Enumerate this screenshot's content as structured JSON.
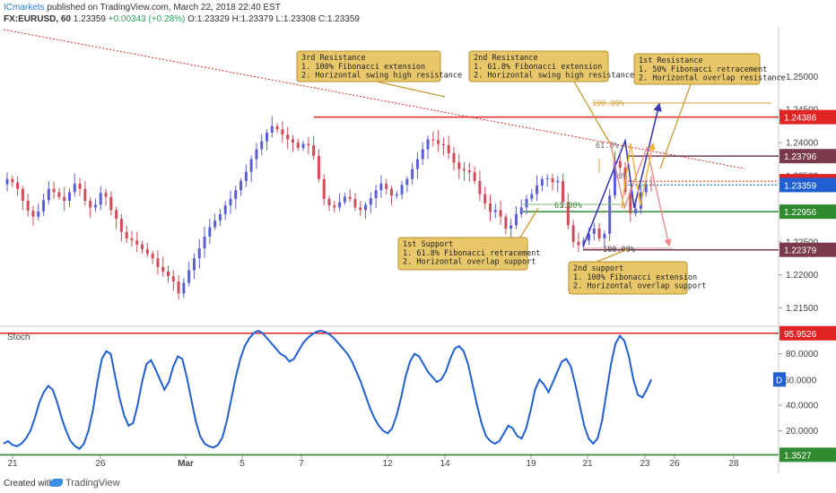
{
  "header": {
    "author": "ICmarkets",
    "published": "published on TradingView.com, March 22, 2018 22:40 EST",
    "symbol": "FX:EURUSD, 60",
    "last": "1.23359",
    "change": "+0.00343 (+0.28%)",
    "ohlc": "O:1.23329  H:1.23379  L:1.23308  C:1.23359"
  },
  "footer": {
    "created": "Created with",
    "brand": "TradingView"
  },
  "colors": {
    "candle_up": "#5a5fd6",
    "candle_down": "#d04c58",
    "resistance": "#e02424",
    "support": "#2f8a2f",
    "stoch": "#1f5fd1",
    "note_bg": "#e5c15a",
    "note_border": "#b8912a",
    "fib": "#d9a13a",
    "price_tag": "#1f5fd1"
  },
  "chart_data": [
    {
      "type": "candlestick",
      "price_axis": {
        "ticks": [
          "1.25000",
          "1.24500",
          "1.24000",
          "1.23500",
          "1.23000",
          "1.22500",
          "1.22000",
          "1.21500"
        ],
        "range": [
          1.2125,
          1.2575
        ]
      },
      "time_axis": {
        "ticks": [
          "21",
          "26",
          "Mar",
          "5",
          "7",
          "12",
          "14",
          "19",
          "21",
          "23",
          "26",
          "28"
        ]
      },
      "price_close_path": [
        1.2345,
        1.234,
        1.233,
        1.2312,
        1.2297,
        1.2288,
        1.2296,
        1.2313,
        1.233,
        1.2325,
        1.2318,
        1.2312,
        1.2325,
        1.2338,
        1.233,
        1.2312,
        1.2302,
        1.2306,
        1.2324,
        1.2318,
        1.2298,
        1.2285,
        1.2265,
        1.2255,
        1.2252,
        1.2246,
        1.2239,
        1.2232,
        1.2225,
        1.2212,
        1.2205,
        1.2198,
        1.219,
        1.2172,
        1.2188,
        1.2207,
        1.2225,
        1.224,
        1.2258,
        1.2272,
        1.2282,
        1.2292,
        1.2305,
        1.2315,
        1.2328,
        1.2342,
        1.2356,
        1.2375,
        1.239,
        1.2402,
        1.2415,
        1.2425,
        1.242,
        1.2412,
        1.2405,
        1.24,
        1.2392,
        1.2398,
        1.2396,
        1.238,
        1.2345,
        1.2315,
        1.2305,
        1.2302,
        1.231,
        1.2318,
        1.2315,
        1.2302,
        1.2298,
        1.2306,
        1.2316,
        1.2328,
        1.2338,
        1.233,
        1.232,
        1.2322,
        1.2336,
        1.2345,
        1.236,
        1.2375,
        1.239,
        1.2405,
        1.2404,
        1.2398,
        1.2396,
        1.2384,
        1.237,
        1.236,
        1.2358,
        1.2355,
        1.2342,
        1.2322,
        1.2308,
        1.2295,
        1.2298,
        1.2288,
        1.227,
        1.2275,
        1.2292,
        1.2302,
        1.2315,
        1.2322,
        1.2335,
        1.2345,
        1.2346,
        1.234,
        1.2342,
        1.231,
        1.2275,
        1.225,
        1.2245,
        1.2252,
        1.2262,
        1.227,
        1.2255,
        1.2262,
        1.232,
        1.2372,
        1.2362,
        1.2325,
        1.2293,
        1.23,
        1.2325,
        1.2337,
        1.2336
      ],
      "levels": [
        {
          "label": "1.24386",
          "value": 1.24386,
          "color": "#e02424",
          "style": "solid"
        },
        {
          "label": "1.23796",
          "value": 1.23796,
          "color": "#7a3a4a",
          "style": "solid"
        },
        {
          "label": "1.23417",
          "value": 1.23417,
          "color": "#e02424",
          "style": "dotted"
        },
        {
          "label": "1.23359",
          "value": 1.23359,
          "color": "#1f5fd1",
          "style": "dotted"
        },
        {
          "label": "1.22956",
          "value": 1.22956,
          "color": "#2f8a2f",
          "style": "solid"
        },
        {
          "label": "1.22379",
          "value": 1.22379,
          "color": "#7a3a4a",
          "style": "solid"
        }
      ],
      "fib_labels": [
        "100.00%",
        "61.8%",
        "61.80%",
        "100.00%",
        "50%"
      ],
      "annotations": [
        {
          "id": "res3",
          "title": "3rd Resistance",
          "lines": [
            "1. 100% Fibonacci extension",
            "2. Horizontal swing high resistance"
          ]
        },
        {
          "id": "res2",
          "title": "2nd Resistance",
          "lines": [
            "1. 61.8% Fibonacci extension",
            "2. Horizontal swing high resistance"
          ]
        },
        {
          "id": "res1",
          "title": "1st Resistance",
          "lines": [
            "1. 50% Fibonacci retracement",
            "2. Horizontal overlap resistance"
          ]
        },
        {
          "id": "sup1",
          "title": "1st Support",
          "lines": [
            "1. 61.8% Fibonacci retracement",
            "2. Horizontal overlap support"
          ]
        },
        {
          "id": "sup2",
          "title": "2nd support",
          "lines": [
            "1. 100% Fibonacci extension",
            "2. Horizontal overlap support"
          ]
        }
      ]
    },
    {
      "type": "line",
      "title": "Stoch",
      "y_axis": {
        "ticks": [
          "80.0000",
          "60.0000",
          "40.0000",
          "20.0000"
        ],
        "range": [
          3,
          100
        ]
      },
      "levels": [
        {
          "label": "95.9526",
          "value": 95.9526,
          "color": "#e02424"
        },
        {
          "label": "60.0000",
          "value": 60.0,
          "color": "#1f5fd1"
        },
        {
          "label": "1.3527",
          "value": 1.3527,
          "color": "#2f8a2f"
        }
      ],
      "series": [
        {
          "values": [
            10,
            12,
            9,
            8,
            10,
            14,
            20,
            30,
            42,
            50,
            55,
            52,
            42,
            30,
            20,
            12,
            8,
            6,
            10,
            20,
            36,
            58,
            76,
            82,
            80,
            62,
            45,
            32,
            24,
            26,
            40,
            58,
            72,
            75,
            68,
            60,
            52,
            58,
            70,
            78,
            76,
            62,
            45,
            28,
            16,
            10,
            8,
            7,
            9,
            15,
            28,
            45,
            62,
            76,
            86,
            92,
            96,
            98,
            96,
            92,
            88,
            84,
            80,
            78,
            74,
            76,
            82,
            88,
            92,
            95,
            97,
            98,
            97,
            95,
            92,
            88,
            84,
            80,
            74,
            66,
            58,
            48,
            38,
            30,
            24,
            20,
            18,
            22,
            32,
            46,
            62,
            74,
            80,
            78,
            72,
            66,
            62,
            58,
            60,
            66,
            76,
            84,
            86,
            82,
            72,
            56,
            40,
            26,
            16,
            12,
            10,
            12,
            18,
            24,
            22,
            16,
            14,
            22,
            36,
            52,
            60,
            56,
            50,
            58,
            66,
            74,
            76,
            70,
            56,
            40,
            24,
            14,
            10,
            14,
            28,
            50,
            72,
            88,
            94,
            90,
            78,
            60,
            48,
            46,
            52,
            60
          ]
        }
      ]
    }
  ]
}
